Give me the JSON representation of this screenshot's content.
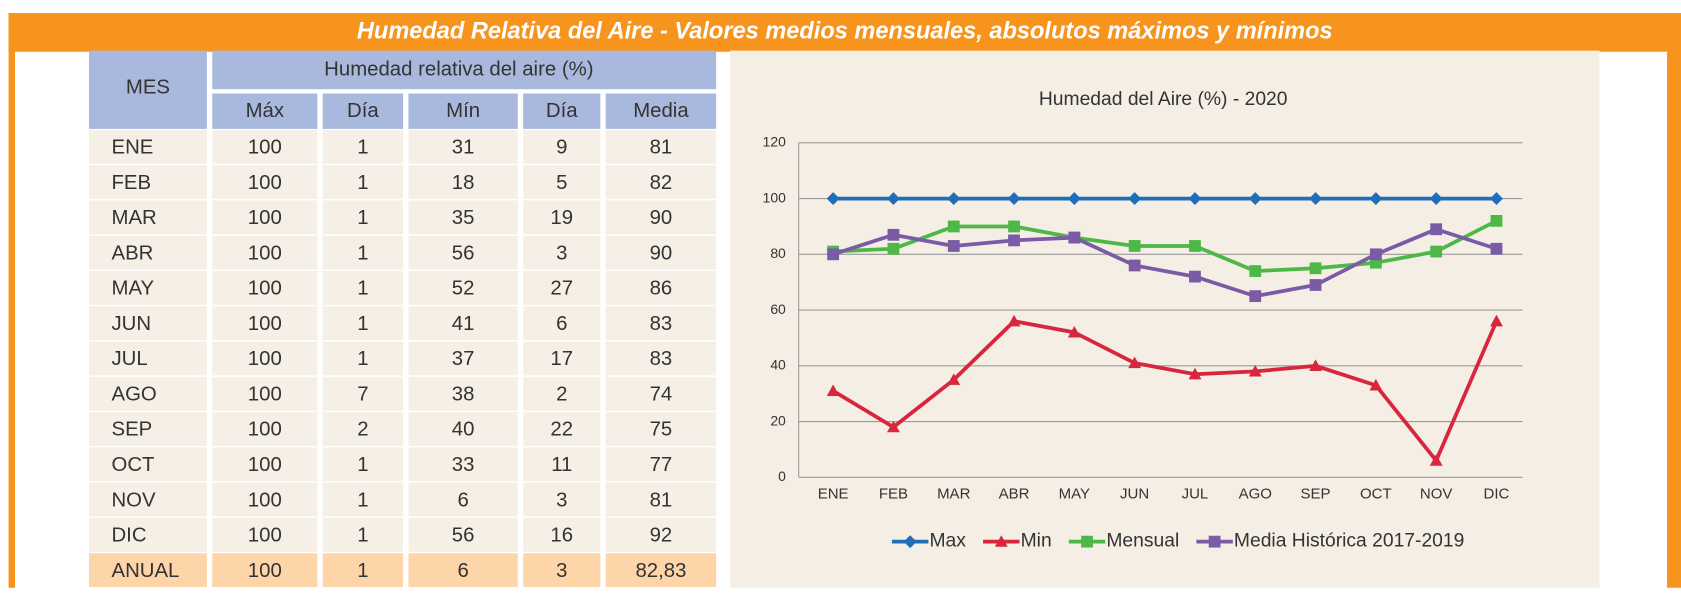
{
  "header": {
    "title": "Humedad Relativa del Aire - Valores medios mensuales, absolutos máximos y mínimos"
  },
  "table": {
    "group_header": "Humedad relativa del aire (%)",
    "columns": [
      "MES",
      "Máx",
      "Día",
      "Mín",
      "Día",
      "Media"
    ],
    "rows": [
      [
        "ENE",
        100,
        1,
        31,
        9,
        81
      ],
      [
        "FEB",
        100,
        1,
        18,
        5,
        82
      ],
      [
        "MAR",
        100,
        1,
        35,
        19,
        90
      ],
      [
        "ABR",
        100,
        1,
        56,
        3,
        90
      ],
      [
        "MAY",
        100,
        1,
        52,
        27,
        86
      ],
      [
        "JUN",
        100,
        1,
        41,
        6,
        83
      ],
      [
        "JUL",
        100,
        1,
        37,
        17,
        83
      ],
      [
        "AGO",
        100,
        7,
        38,
        2,
        74
      ],
      [
        "SEP",
        100,
        2,
        40,
        22,
        75
      ],
      [
        "OCT",
        100,
        1,
        33,
        11,
        77
      ],
      [
        "NOV",
        100,
        1,
        6,
        3,
        81
      ],
      [
        "DIC",
        100,
        1,
        56,
        16,
        92
      ],
      [
        "ANUAL",
        100,
        1,
        6,
        3,
        "82,83"
      ]
    ]
  },
  "chart_data": {
    "type": "line",
    "title": "Humedad del Aire  (%) - 2020",
    "categories": [
      "ENE",
      "FEB",
      "MAR",
      "ABR",
      "MAY",
      "JUN",
      "JUL",
      "AGO",
      "SEP",
      "OCT",
      "NOV",
      "DIC"
    ],
    "series": [
      {
        "name": "Max",
        "color": "#1f6fb8",
        "marker": "diamond",
        "values": [
          100,
          100,
          100,
          100,
          100,
          100,
          100,
          100,
          100,
          100,
          100,
          100
        ]
      },
      {
        "name": "Min",
        "color": "#d7263d",
        "marker": "triangle",
        "values": [
          31,
          18,
          35,
          56,
          52,
          41,
          37,
          38,
          40,
          33,
          6,
          56
        ]
      },
      {
        "name": "Mensual",
        "color": "#4db848",
        "marker": "square",
        "values": [
          81,
          82,
          90,
          90,
          86,
          83,
          83,
          74,
          75,
          77,
          81,
          92
        ]
      },
      {
        "name": "Media Histórica 2017-2019",
        "color": "#7b5aa6",
        "marker": "square",
        "values": [
          80,
          87,
          83,
          85,
          86,
          76,
          72,
          65,
          69,
          80,
          89,
          82
        ]
      }
    ],
    "ylim": [
      0,
      120
    ],
    "yticks": [
      0,
      20,
      40,
      60,
      80,
      100,
      120
    ],
    "grid": true,
    "legend": "bottom"
  }
}
